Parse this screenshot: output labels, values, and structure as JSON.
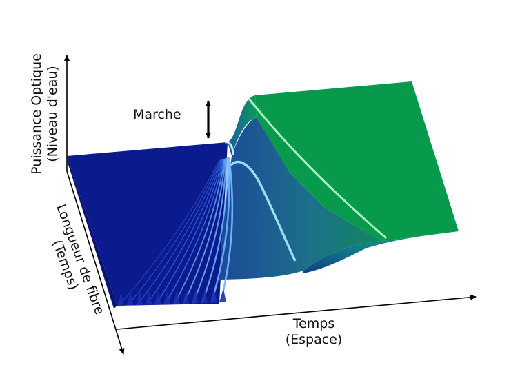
{
  "labels": {
    "y_axis": [
      "Puissance Optique",
      "(Niveau d'eau)"
    ],
    "z_axis": [
      "Longueur de fibre",
      "(Temps)"
    ],
    "x_axis": [
      "Temps",
      "(Espace)"
    ],
    "step": "Marche"
  },
  "colors": {
    "low_level": "#0b1a8c",
    "high_level": "#079a4d",
    "wave_highlight": "#9fe8ff",
    "front_highlight": "#b8ffcf",
    "axes": "#000000"
  }
}
